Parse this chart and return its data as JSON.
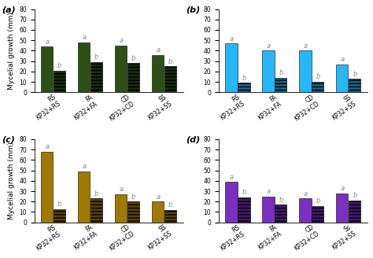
{
  "panels": [
    {
      "label": "(a)",
      "color_solid": "#2d5016",
      "color_hatched": "#2d5016",
      "groups": [
        "RS\nKP32+RS",
        "FA\nKP32+FA",
        "CD\nKP32+CD",
        "SS\nKP32+SS"
      ],
      "values_solid": [
        44,
        48,
        45,
        36
      ],
      "values_hatched": [
        21,
        29,
        28,
        25
      ],
      "letters_solid": [
        "a",
        "a",
        "a",
        "a"
      ],
      "letters_hatched": [
        "b",
        "b",
        "b",
        "b"
      ],
      "ylim": [
        0,
        80
      ]
    },
    {
      "label": "(b)",
      "color_solid": "#29b6f6",
      "color_hatched": "#29b6f6",
      "groups": [
        "RS\nKP32+RS",
        "FA\nKP32+FA",
        "CD\nKP32+CD",
        "SS\nKP32+SS"
      ],
      "values_solid": [
        47,
        40,
        40,
        27
      ],
      "values_hatched": [
        9,
        14,
        10,
        13
      ],
      "letters_solid": [
        "a",
        "a",
        "a",
        "a"
      ],
      "letters_hatched": [
        "b",
        "b",
        "b",
        "b"
      ],
      "ylim": [
        0,
        80
      ]
    },
    {
      "label": "(c)",
      "color_solid": "#a07800",
      "color_hatched": "#a07800",
      "groups": [
        "RS\nKP32+RS",
        "FA\nKP32+FA",
        "CD\nKP32+CD",
        "SS\nKP32+SS"
      ],
      "values_solid": [
        68,
        49,
        27,
        20
      ],
      "values_hatched": [
        13,
        23,
        20,
        12
      ],
      "letters_solid": [
        "a",
        "a",
        "a",
        "a"
      ],
      "letters_hatched": [
        "b",
        "b",
        "b",
        "b"
      ],
      "ylim": [
        0,
        80
      ]
    },
    {
      "label": "(d)",
      "color_solid": "#7b2fbe",
      "color_hatched": "#7b2fbe",
      "groups": [
        "RS\nKP32+RS",
        "FA\nKP32+FA",
        "CD\nKP32+CD",
        "Ss\nKP32+SS"
      ],
      "values_solid": [
        39,
        25,
        23,
        28
      ],
      "values_hatched": [
        24,
        17,
        16,
        21
      ],
      "letters_solid": [
        "a",
        "a",
        "a",
        "a"
      ],
      "letters_hatched": [
        "b",
        "b",
        "b",
        "b"
      ],
      "ylim": [
        0,
        80
      ]
    }
  ],
  "ylabel": "Mycelial growth (mm)",
  "yticks": [
    0,
    10,
    20,
    30,
    40,
    50,
    60,
    70,
    80
  ],
  "bar_width": 0.32,
  "letter_fontsize": 6,
  "axis_fontsize": 6.5,
  "label_fontsize": 8,
  "tick_fontsize": 5.5,
  "background_color": "#ffffff",
  "hatch_color_darken": 0.55
}
